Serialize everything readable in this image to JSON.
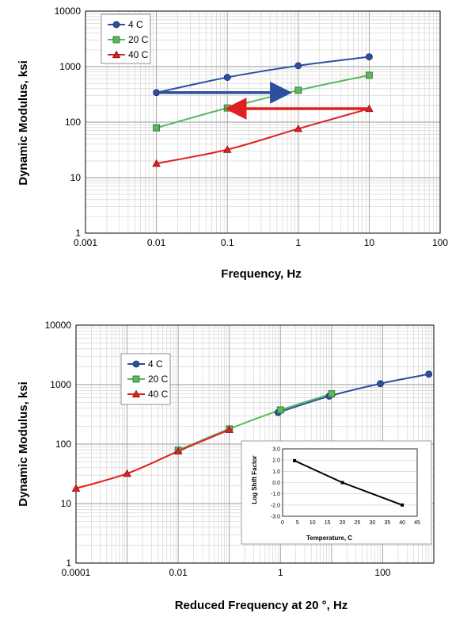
{
  "chart_data": [
    {
      "type": "line",
      "xscale": "log",
      "yscale": "log",
      "xlim": [
        0.001,
        100
      ],
      "ylim": [
        1,
        10000
      ],
      "xlabel": "Frequency, Hz",
      "ylabel": "Dynamic Modulus, ksi",
      "xticks": [
        "0.001",
        "0.01",
        "0.1",
        "1",
        "10",
        "100"
      ],
      "yticks": [
        "1",
        "10",
        "100",
        "1000",
        "10000"
      ],
      "grid": true,
      "legend_position": "top-left",
      "series": [
        {
          "name": "4 C",
          "color": "#2e4f9e",
          "marker": "circle",
          "x": [
            0.01,
            0.1,
            1,
            10
          ],
          "y": [
            340,
            640,
            1040,
            1500
          ]
        },
        {
          "name": "20 C",
          "color": "#5cb85c",
          "marker": "square",
          "x": [
            0.01,
            0.1,
            1,
            10
          ],
          "y": [
            79,
            180,
            375,
            700
          ]
        },
        {
          "name": "40 C",
          "color": "#e02020",
          "marker": "triangle",
          "x": [
            0.01,
            0.1,
            1,
            10
          ],
          "y": [
            18,
            32,
            76,
            175
          ]
        }
      ],
      "annotations": [
        {
          "type": "arrow",
          "color": "#2e4f9e",
          "from": [
            0.01,
            340
          ],
          "to": [
            0.75,
            340
          ]
        },
        {
          "type": "arrow",
          "color": "#e02020",
          "from": [
            10,
            175
          ],
          "to": [
            0.1,
            175
          ]
        }
      ]
    },
    {
      "type": "line",
      "xscale": "log",
      "yscale": "log",
      "xlim": [
        0.0001,
        1000
      ],
      "ylim": [
        1,
        10000
      ],
      "xlabel": "Reduced Frequency at 20 °, Hz",
      "ylabel": "Dynamic Modulus, ksi",
      "xticks": [
        "0.0001",
        "0.01",
        "1",
        "100"
      ],
      "yticks": [
        "1",
        "10",
        "100",
        "1000",
        "10000"
      ],
      "grid": true,
      "legend_position": "top-left",
      "series": [
        {
          "name": "4 C",
          "color": "#2e4f9e",
          "marker": "circle",
          "x": [
            0.9,
            9,
            90,
            800
          ],
          "y": [
            340,
            640,
            1040,
            1500
          ]
        },
        {
          "name": "20 C",
          "color": "#5cb85c",
          "marker": "square",
          "x": [
            0.01,
            0.1,
            1,
            10
          ],
          "y": [
            79,
            180,
            375,
            700
          ]
        },
        {
          "name": "40 C",
          "color": "#e02020",
          "marker": "triangle",
          "x": [
            0.0001,
            0.001,
            0.01,
            0.1
          ],
          "y": [
            18,
            32,
            76,
            175
          ]
        }
      ],
      "inset": {
        "type": "line",
        "xlabel": "Temperature, C",
        "ylabel": "Log Shift Factor",
        "xlim": [
          0,
          45
        ],
        "ylim": [
          -3.0,
          3.0
        ],
        "xticks": [
          "0",
          "5",
          "10",
          "15",
          "20",
          "25",
          "30",
          "35",
          "40",
          "45"
        ],
        "yticks": [
          "3.0",
          "2.0",
          "1.0",
          "0.0",
          "-1.0",
          "-2.0",
          "-3.0"
        ],
        "series": [
          {
            "color": "#000000",
            "marker": "square",
            "x": [
              4,
              20,
              40
            ],
            "y": [
              1.95,
              0.0,
              -2.0
            ]
          }
        ]
      }
    }
  ]
}
